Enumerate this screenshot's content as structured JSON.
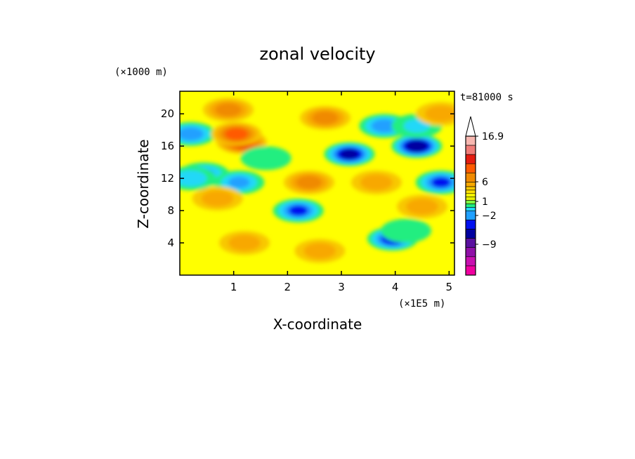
{
  "chart_data": {
    "type": "heatmap",
    "title": "zonal velocity",
    "xlabel": "X-coordinate",
    "ylabel": "Z-coordinate",
    "x_unit": "(×1E5 m)",
    "y_unit": "(×1000 m)",
    "time_label": "t=81000 s",
    "xlim": [
      0,
      5.1
    ],
    "ylim": [
      0,
      22.8
    ],
    "x_ticks": [
      "1",
      "2",
      "3",
      "4",
      "5"
    ],
    "y_ticks": [
      "4",
      "8",
      "12",
      "16",
      "20"
    ],
    "colorbar": {
      "labels": [
        "16.9",
        "6",
        "1",
        "−2",
        "−9"
      ],
      "colors": [
        "#f7b7b0",
        "#f07c78",
        "#e41c10",
        "#ff5a00",
        "#f08a00",
        "#f8a800",
        "#f8c800",
        "#ffe000",
        "#ffff00",
        "#e8f000",
        "#80ff40",
        "#20ee80",
        "#20d8f8",
        "#20a0ff",
        "#0010f0",
        "#0000a0",
        "#5a10a0",
        "#9010a8",
        "#c810b0",
        "#f000a0"
      ],
      "value_levels": [
        16.9,
        6,
        1,
        -2,
        -9
      ]
    },
    "features": [
      {
        "x": 0.2,
        "z": 17.5,
        "v": -6
      },
      {
        "x": 0.45,
        "z": 12.5,
        "v": -5
      },
      {
        "x": 0.2,
        "z": 12.0,
        "v": -4
      },
      {
        "x": 1.1,
        "z": 11.5,
        "v": -5
      },
      {
        "x": 1.15,
        "z": 16.5,
        "v": 5
      },
      {
        "x": 1.05,
        "z": 17.5,
        "v": 4
      },
      {
        "x": 2.2,
        "z": 8.0,
        "v": -7
      },
      {
        "x": 2.4,
        "z": 11.5,
        "v": 3
      },
      {
        "x": 3.15,
        "z": 15.0,
        "v": -9
      },
      {
        "x": 4.4,
        "z": 16.0,
        "v": -10
      },
      {
        "x": 4.85,
        "z": 11.5,
        "v": -7
      },
      {
        "x": 3.8,
        "z": 18.5,
        "v": -6
      },
      {
        "x": 3.95,
        "z": 4.5,
        "v": -8
      },
      {
        "x": 4.4,
        "z": 18.5,
        "v": -3
      },
      {
        "x": 4.85,
        "z": 20.0,
        "v": 2
      },
      {
        "x": 0.9,
        "z": 20.5,
        "v": 3
      },
      {
        "x": 1.6,
        "z": 14.5,
        "v": -2
      },
      {
        "x": 2.7,
        "z": 19.5,
        "v": 3
      },
      {
        "x": 3.65,
        "z": 11.5,
        "v": 2
      },
      {
        "x": 4.5,
        "z": 8.5,
        "v": 2
      },
      {
        "x": 4.2,
        "z": 5.5,
        "v": -2
      },
      {
        "x": 0.7,
        "z": 9.5,
        "v": 2
      },
      {
        "x": 1.2,
        "z": 4.0,
        "v": 2
      },
      {
        "x": 2.6,
        "z": 3.0,
        "v": 2
      }
    ]
  }
}
